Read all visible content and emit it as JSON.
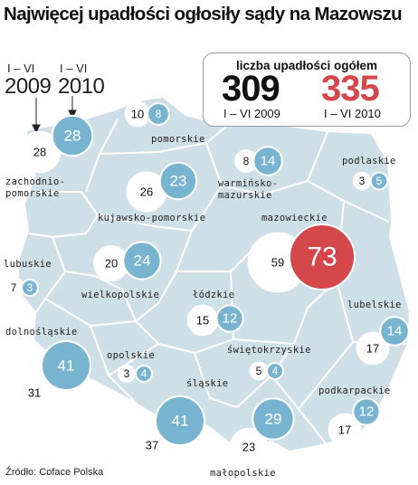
{
  "title": "Najwięcej upadłości ogłosiły sądy na Mazowszu",
  "legend": {
    "caption": "liczba upadłości ogółem",
    "total_2009": "309",
    "period_2009": "I – VI 2009",
    "total_2010": "335",
    "period_2010": "I – VI 2010"
  },
  "key": {
    "label_2009_period": "I – VI",
    "label_2009_year": "2009",
    "label_2010_period": "I – VI",
    "label_2010_year": "2010"
  },
  "colors": {
    "land": "#cfdfe8",
    "border": "#ffffff",
    "circle_2009": "#ffffff",
    "circle_2010": "#78b4cf",
    "highlight": "#d4474b"
  },
  "regions": [
    {
      "name": "pomorskie",
      "lines": [
        "pomorskie"
      ],
      "v2009": 10,
      "v2010": 8
    },
    {
      "name": "zachodniopomorskie",
      "lines": [
        "zachodnio-",
        "pomorskie"
      ],
      "v2009": 28,
      "v2010": 28
    },
    {
      "name": "warminsko-mazurskie",
      "lines": [
        "warmińsko-",
        "mazurskie"
      ],
      "v2009": 8,
      "v2010": 14
    },
    {
      "name": "podlaskie",
      "lines": [
        "podlaskie"
      ],
      "v2009": 3,
      "v2010": 5
    },
    {
      "name": "kujawsko-pomorskie",
      "lines": [
        "kujawsko-pomorskie"
      ],
      "v2009": 26,
      "v2010": 23
    },
    {
      "name": "mazowieckie",
      "lines": [
        "mazowieckie"
      ],
      "v2009": 59,
      "v2010": 73
    },
    {
      "name": "lubuskie",
      "lines": [
        "lubuskie"
      ],
      "v2009": 7,
      "v2010": 3
    },
    {
      "name": "wielkopolskie",
      "lines": [
        "wielkopolskie"
      ],
      "v2009": 20,
      "v2010": 24
    },
    {
      "name": "lodzkie",
      "lines": [
        "łódzkie"
      ],
      "v2009": 15,
      "v2010": 12
    },
    {
      "name": "lubelskie",
      "lines": [
        "lubelskie"
      ],
      "v2009": 17,
      "v2010": 14
    },
    {
      "name": "dolnoslaskie",
      "lines": [
        "dolnośląskie"
      ],
      "v2009": 31,
      "v2010": 41
    },
    {
      "name": "opolskie",
      "lines": [
        "opolskie"
      ],
      "v2009": 3,
      "v2010": 4
    },
    {
      "name": "swietokrzyskie",
      "lines": [
        "świętokrzyskie"
      ],
      "v2009": 5,
      "v2010": 4
    },
    {
      "name": "podkarpackie",
      "lines": [
        "podkarpackie"
      ],
      "v2009": 17,
      "v2010": 12
    },
    {
      "name": "slaskie",
      "lines": [
        "śląskie"
      ],
      "v2009": 37,
      "v2010": 41
    },
    {
      "name": "malopolskie",
      "lines": [
        "małopolskie"
      ],
      "v2009": 23,
      "v2010": 29
    }
  ],
  "source": "Źródło: Coface Polska"
}
